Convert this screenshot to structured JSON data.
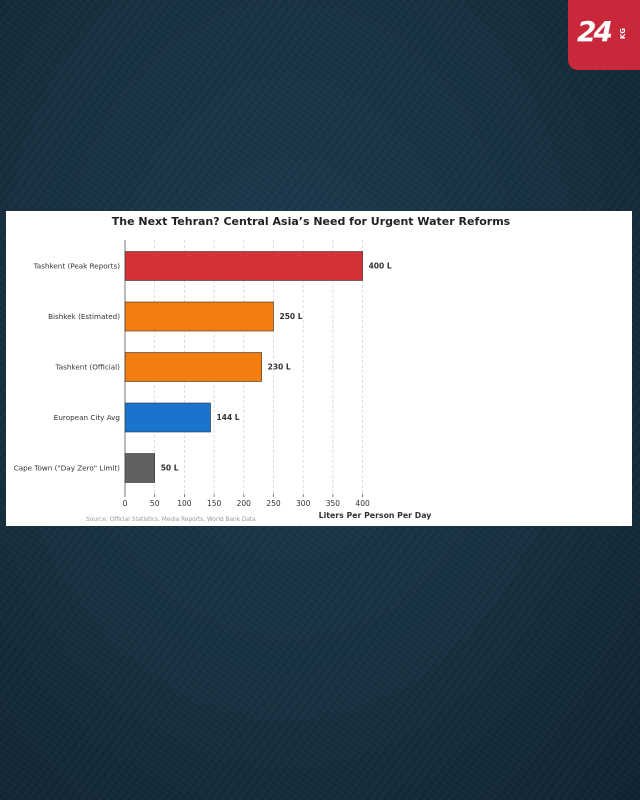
{
  "brand": {
    "logo_text": "24",
    "logo_sub": "KG",
    "color": "#c8283a"
  },
  "chart_data": {
    "type": "bar",
    "orientation": "horizontal",
    "title": "The Next Tehran? Central Asia’s Need for Urgent Water Reforms",
    "xlabel": "Liters Per Person Per Day",
    "ylabel": "",
    "source": "Source: Official Statistics, Media Reports, World Bank Data",
    "xlim": [
      0,
      420
    ],
    "xticks": [
      0,
      50,
      100,
      150,
      200,
      250,
      300,
      350,
      400
    ],
    "grid": "vertical dashed",
    "categories": [
      "Tashkent (Peak Reports)",
      "Bishkek (Estimated)",
      "Tashkent (Official)",
      "European City Avg",
      "Cape Town (\"Day Zero\" Limit)"
    ],
    "values": [
      400,
      250,
      230,
      144,
      50
    ],
    "value_labels": [
      "400 L",
      "250 L",
      "230 L",
      "144 L",
      "50 L"
    ],
    "colors": [
      "#d43236",
      "#f57c0e",
      "#f57c0e",
      "#1a73cd",
      "#616161"
    ]
  }
}
